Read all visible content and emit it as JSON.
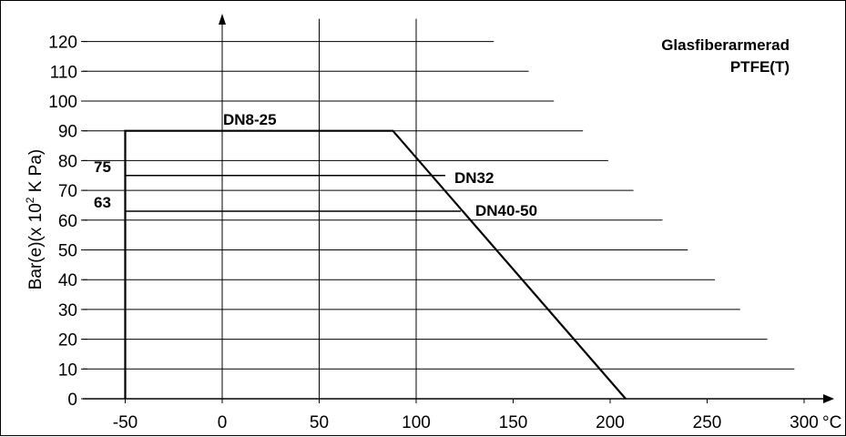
{
  "chart_data": {
    "type": "line",
    "title_lines": [
      "Glasfiberarmerad",
      "PTFE(T)"
    ],
    "ylabel_prefix": "Bar(e)(x 10",
    "ylabel_sup": "2",
    "ylabel_suffix": " K Pa)",
    "x_unit": "°C",
    "xlim": [
      -50,
      310
    ],
    "ylim": [
      0,
      120
    ],
    "x_ticks": [
      -50,
      0,
      50,
      100,
      150,
      200,
      250,
      300
    ],
    "y_ticks": [
      0,
      10,
      20,
      30,
      40,
      50,
      60,
      70,
      80,
      90,
      100,
      110,
      120
    ],
    "x_gridlines": [
      0,
      50,
      100
    ],
    "y_gridlines": [
      {
        "y": 10,
        "x_end": 295
      },
      {
        "y": 20,
        "x_end": 281
      },
      {
        "y": 30,
        "x_end": 267
      },
      {
        "y": 40,
        "x_end": 254
      },
      {
        "y": 50,
        "x_end": 240
      },
      {
        "y": 60,
        "x_end": 227
      },
      {
        "y": 70,
        "x_end": 212
      },
      {
        "y": 80,
        "x_end": 199
      },
      {
        "y": 90,
        "x_end": 186
      },
      {
        "y": 100,
        "x_end": 171
      },
      {
        "y": 110,
        "x_end": 158
      },
      {
        "y": 120,
        "x_end": 140
      }
    ],
    "series": [
      {
        "name": "DN8-25",
        "points": [
          [
            -50,
            0
          ],
          [
            -50,
            90
          ],
          [
            88,
            90
          ],
          [
            208,
            0
          ]
        ]
      },
      {
        "name": "DN32",
        "points": [
          [
            -50,
            75
          ],
          [
            115,
            75
          ]
        ]
      },
      {
        "name": "DN40-50",
        "points": [
          [
            -50,
            63
          ],
          [
            123,
            63
          ]
        ]
      }
    ],
    "level_labels": [
      {
        "text": "75",
        "y": 75
      },
      {
        "text": "63",
        "y": 63
      }
    ]
  }
}
